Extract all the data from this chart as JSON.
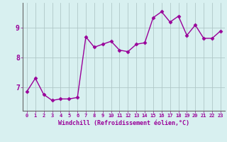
{
  "x": [
    0,
    1,
    2,
    3,
    4,
    5,
    6,
    7,
    8,
    9,
    10,
    11,
    12,
    13,
    14,
    15,
    16,
    17,
    18,
    19,
    20,
    21,
    22,
    23
  ],
  "y": [
    6.85,
    7.3,
    6.75,
    6.55,
    6.6,
    6.6,
    6.65,
    8.7,
    8.35,
    8.45,
    8.55,
    8.25,
    8.2,
    8.45,
    8.5,
    9.35,
    9.55,
    9.2,
    9.4,
    8.75,
    9.1,
    8.65,
    8.65,
    8.9
  ],
  "line_color": "#990099",
  "marker": "D",
  "markersize": 2.5,
  "linewidth": 1.0,
  "bg_color": "#d8f0f0",
  "grid_color": "#b0c8c8",
  "xlabel": "Windchill (Refroidissement éolien,°C)",
  "xlabel_color": "#990099",
  "tick_color": "#990099",
  "yticks": [
    7,
    8,
    9
  ],
  "ylim": [
    6.2,
    9.85
  ],
  "xlim": [
    -0.5,
    23.5
  ]
}
